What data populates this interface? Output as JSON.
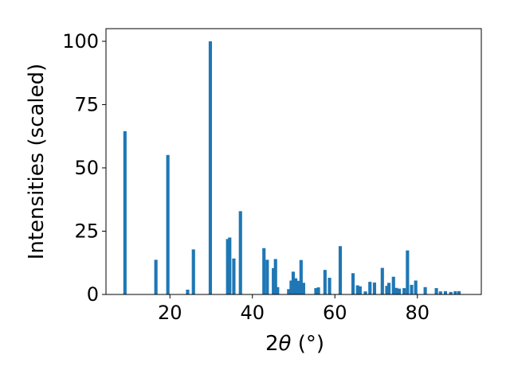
{
  "chart_data": {
    "type": "bar",
    "xlabel_main": "2",
    "xlabel_theta": "θ",
    "xlabel_unit": " (°)",
    "ylabel": "Intensities (scaled)",
    "xlim": [
      4.5,
      95.5
    ],
    "ylim": [
      0,
      105
    ],
    "xticks": [
      20,
      40,
      60,
      80
    ],
    "yticks": [
      0,
      25,
      50,
      75,
      100
    ],
    "grid": false,
    "bar_color": "#1f77b4",
    "bar_width": 0.8,
    "x": [
      9.1,
      16.6,
      19.5,
      24.3,
      25.7,
      29.8,
      34.0,
      34.5,
      35.5,
      37.1,
      42.8,
      43.6,
      45.1,
      45.6,
      46.1,
      48.8,
      49.4,
      49.9,
      50.5,
      51.1,
      51.8,
      52.4,
      55.4,
      56.0,
      57.6,
      58.7,
      61.3,
      64.4,
      65.5,
      66.1,
      67.4,
      68.5,
      69.6,
      71.5,
      72.6,
      73.1,
      74.2,
      74.9,
      75.6,
      76.8,
      77.6,
      78.6,
      79.6,
      81.9,
      84.6,
      85.6,
      86.8,
      88.1,
      89.2,
      90.1
    ],
    "values": [
      64.5,
      13.7,
      55.1,
      1.9,
      17.8,
      100.0,
      21.9,
      22.5,
      14.2,
      32.9,
      18.3,
      13.7,
      10.4,
      14.0,
      2.9,
      2.1,
      5.5,
      9.0,
      6.4,
      5.4,
      13.6,
      4.6,
      2.5,
      2.8,
      9.7,
      6.6,
      19.1,
      8.4,
      3.6,
      3.2,
      1.2,
      5.0,
      4.7,
      10.5,
      3.4,
      4.6,
      7.0,
      2.6,
      2.3,
      2.5,
      17.4,
      3.8,
      5.5,
      2.9,
      2.5,
      1.2,
      1.3,
      1.0,
      1.3,
      1.3
    ]
  }
}
